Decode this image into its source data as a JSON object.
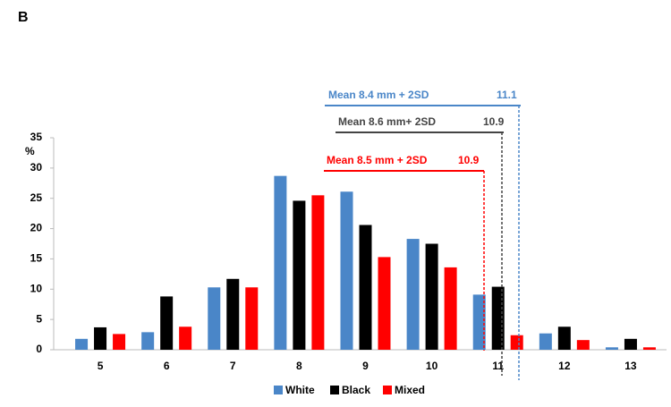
{
  "chart_data": {
    "type": "bar",
    "panel_label": "B",
    "y_label": "%",
    "categories": [
      "5",
      "6",
      "7",
      "8",
      "9",
      "10",
      "11",
      "12",
      "13"
    ],
    "series": [
      {
        "name": "White",
        "color": "#4a86c8",
        "values": [
          1.8,
          2.9,
          10.3,
          28.7,
          26.1,
          18.3,
          9.1,
          2.7,
          0.4
        ]
      },
      {
        "name": "Black",
        "color": "#000000",
        "values": [
          3.7,
          8.8,
          11.7,
          24.6,
          20.6,
          17.5,
          10.4,
          3.8,
          1.8
        ]
      },
      {
        "name": "Mixed",
        "color": "#ff0000",
        "values": [
          2.6,
          3.8,
          10.3,
          25.5,
          15.3,
          13.6,
          2.4,
          1.6,
          0.4
        ]
      }
    ],
    "ylim": [
      0,
      35
    ],
    "yticks": [
      0,
      5,
      10,
      15,
      20,
      25,
      30,
      35
    ],
    "grid": false,
    "annotations": [
      {
        "text": "Mean 8.4 mm + 2SD",
        "value": 11.1,
        "color": "#4a86c8"
      },
      {
        "text": "Mean 8.6 mm+ 2SD",
        "value": 10.9,
        "color": "#444444"
      },
      {
        "text": "Mean 8.5 mm  + 2SD",
        "value": 10.9,
        "color": "#ff0000"
      }
    ],
    "legend": "bottom"
  }
}
